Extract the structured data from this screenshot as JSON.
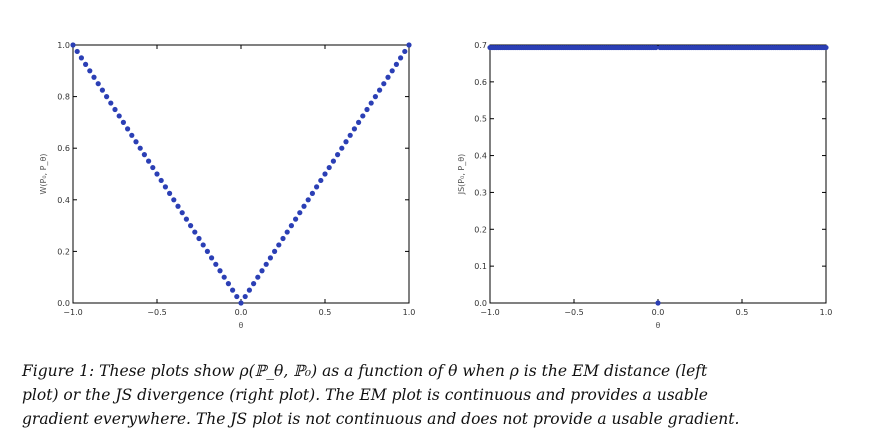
{
  "chart_data": [
    {
      "type": "scatter",
      "xlabel": "θ",
      "ylabel": "W(P₀, P_θ)",
      "xlim": [
        -1.0,
        1.0
      ],
      "ylim": [
        0.0,
        1.0
      ],
      "xticks": [
        "−1.0",
        "−0.5",
        "0.0",
        "0.5",
        "1.0"
      ],
      "yticks": [
        "0.0",
        "0.2",
        "0.4",
        "0.6",
        "0.8",
        "1.0"
      ],
      "series": [
        {
          "function": "|θ|",
          "x_start": -1.0,
          "x_end": 1.0,
          "num_points": 81,
          "color": "#2b3fb5"
        }
      ]
    },
    {
      "type": "scatter",
      "xlabel": "θ",
      "ylabel": "JS(P₀, P_θ)",
      "xlim": [
        -1.0,
        1.0
      ],
      "ylim": [
        0.0,
        0.7
      ],
      "xticks": [
        "−1.0",
        "−0.5",
        "0.0",
        "0.5",
        "1.0"
      ],
      "yticks": [
        "0.0",
        "0.1",
        "0.2",
        "0.3",
        "0.4",
        "0.5",
        "0.6",
        "0.7"
      ],
      "series": [
        {
          "function": "ln2 for θ≠0, 0 at θ=0",
          "x_start": -1.0,
          "x_end": 1.0,
          "num_points": 161,
          "value_nonzero": 0.6931,
          "value_at_zero": 0.0,
          "color": "#2b3fb5"
        }
      ]
    }
  ],
  "caption": {
    "line1": "Figure 1: These plots show ρ(ℙ_θ, ℙ₀) as a function of θ when ρ is the EM distance (left",
    "line2": "plot) or the JS divergence (right plot). The EM plot is continuous and provides a usable",
    "line3": "gradient everywhere. The JS plot is not continuous and does not provide a usable gradient."
  }
}
